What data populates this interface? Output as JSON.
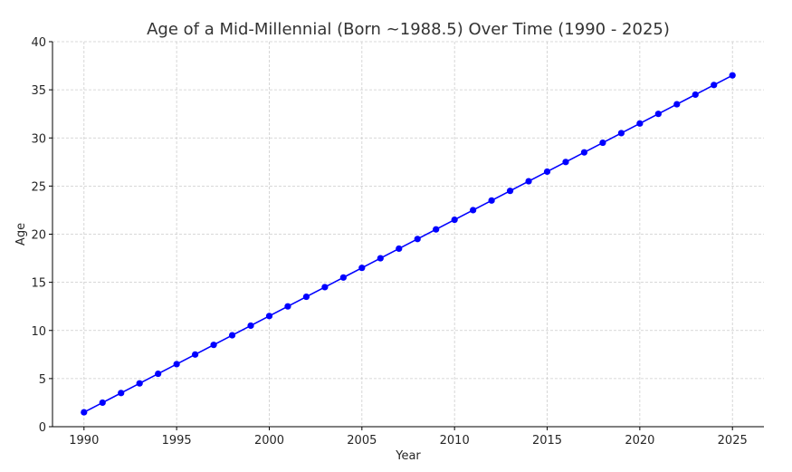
{
  "chart_data": {
    "type": "line",
    "title": "Age of a Mid-Millennial (Born ~1988.5) Over Time (1990 - 2025)",
    "xlabel": "Year",
    "ylabel": "Age",
    "xlim": [
      1988.3,
      2026.7
    ],
    "ylim": [
      0,
      40
    ],
    "xticks": [
      1990,
      1995,
      2000,
      2005,
      2010,
      2015,
      2020,
      2025
    ],
    "yticks": [
      0,
      5,
      10,
      15,
      20,
      25,
      30,
      35,
      40
    ],
    "grid": true,
    "series": [
      {
        "color": "#0000ff",
        "marker": "circle",
        "x": [
          1990,
          1991,
          1992,
          1993,
          1994,
          1995,
          1996,
          1997,
          1998,
          1999,
          2000,
          2001,
          2002,
          2003,
          2004,
          2005,
          2006,
          2007,
          2008,
          2009,
          2010,
          2011,
          2012,
          2013,
          2014,
          2015,
          2016,
          2017,
          2018,
          2019,
          2020,
          2021,
          2022,
          2023,
          2024,
          2025
        ],
        "y": [
          1.5,
          2.5,
          3.5,
          4.5,
          5.5,
          6.5,
          7.5,
          8.5,
          9.5,
          10.5,
          11.5,
          12.5,
          13.5,
          14.5,
          15.5,
          16.5,
          17.5,
          18.5,
          19.5,
          20.5,
          21.5,
          22.5,
          23.5,
          24.5,
          25.5,
          26.5,
          27.5,
          28.5,
          29.5,
          30.5,
          31.5,
          32.5,
          33.5,
          34.5,
          35.5,
          36.5
        ]
      }
    ]
  }
}
